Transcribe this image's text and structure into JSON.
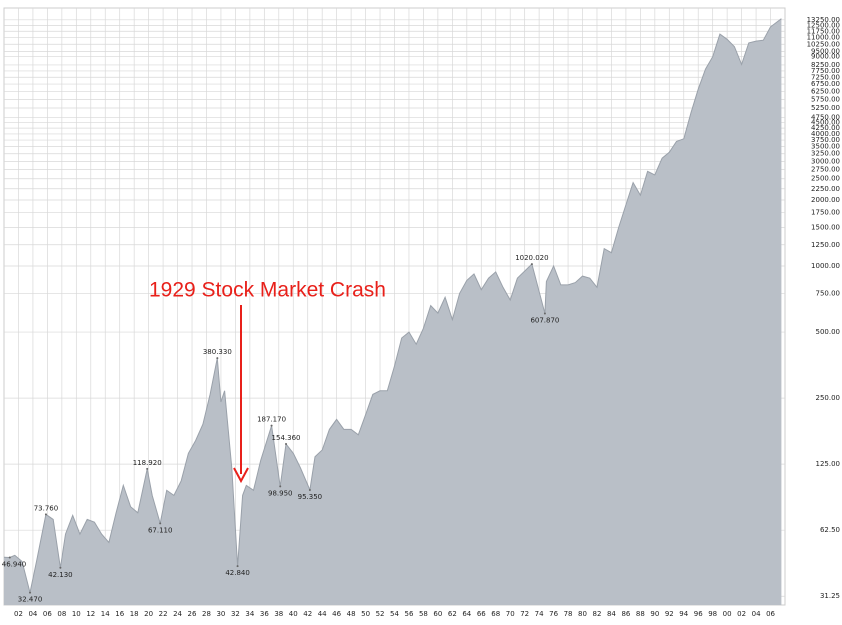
{
  "chart_data": {
    "type": "area",
    "annotation": "1929 Stock Market Crash",
    "color": "#b9bfc7",
    "line_color": "#9aa1aa",
    "log_scale": true,
    "grid": true,
    "xlim": [
      1900,
      2008
    ],
    "ylim": [
      28.5,
      15000
    ],
    "x": [
      1900,
      1900.8,
      1901.5,
      1902.5,
      1903.6,
      1904.5,
      1905.8,
      1906.8,
      1907.8,
      1908.5,
      1909.5,
      1910.5,
      1911.5,
      1912.5,
      1913.5,
      1914.5,
      1915.5,
      1916.5,
      1917.5,
      1918.5,
      1919.8,
      1920.5,
      1921.6,
      1922.5,
      1923.5,
      1924.5,
      1925.5,
      1926.5,
      1927.5,
      1928.5,
      1929.5,
      1930,
      1930.5,
      1931,
      1931.5,
      1932.3,
      1933,
      1933.5,
      1934.5,
      1935.5,
      1937,
      1938.2,
      1939,
      1940,
      1941,
      1942.3,
      1943,
      1944,
      1945,
      1946,
      1947,
      1948,
      1949,
      1950,
      1951,
      1952,
      1953,
      1954,
      1955,
      1956,
      1957,
      1958,
      1959,
      1960,
      1961,
      1962,
      1963,
      1964,
      1965,
      1966,
      1967,
      1968,
      1969,
      1970,
      1971,
      1973,
      1974.8,
      1975,
      1976,
      1977,
      1978,
      1979,
      1980,
      1981,
      1982,
      1983,
      1984,
      1985,
      1986,
      1987,
      1988,
      1989,
      1990,
      1991,
      1992,
      1993,
      1994,
      1995,
      1996,
      1997,
      1998,
      1999,
      2000,
      2001,
      2002,
      2003,
      2004,
      2005,
      2006,
      2007.5
    ],
    "values": [
      47,
      46.94,
      48,
      45,
      32.47,
      45,
      73.76,
      70,
      42.13,
      60,
      73,
      60,
      70,
      68,
      60,
      55,
      75,
      100,
      80,
      75,
      118.92,
      90,
      67.11,
      95,
      90,
      105,
      140,
      160,
      190,
      260,
      380.33,
      240,
      270,
      180,
      120,
      42.84,
      90,
      100,
      95,
      130,
      187.17,
      98.95,
      154.36,
      140,
      120,
      95.35,
      135,
      145,
      180,
      200,
      180,
      180,
      170,
      210,
      260,
      270,
      270,
      350,
      470,
      500,
      440,
      520,
      660,
      610,
      720,
      570,
      750,
      860,
      920,
      780,
      880,
      940,
      800,
      700,
      880,
      1020.02,
      607.87,
      850,
      1000,
      820,
      820,
      840,
      900,
      880,
      800,
      1200,
      1150,
      1500,
      1900,
      2400,
      2100,
      2700,
      2600,
      3100,
      3300,
      3700,
      3800,
      5000,
      6400,
      7900,
      9000,
      11400,
      10800,
      10000,
      8300,
      10400,
      10600,
      10700,
      12300,
      13400
    ],
    "point_labels": [
      {
        "x": 1900.8,
        "value": 46.94,
        "label": "46.940"
      },
      {
        "x": 1903.6,
        "value": 32.47,
        "label": "32.470"
      },
      {
        "x": 1905.8,
        "value": 73.76,
        "label": "73.760"
      },
      {
        "x": 1907.8,
        "value": 42.13,
        "label": "42.130"
      },
      {
        "x": 1919.8,
        "value": 118.92,
        "label": "118.920"
      },
      {
        "x": 1921.6,
        "value": 67.11,
        "label": "67.110"
      },
      {
        "x": 1929.5,
        "value": 380.33,
        "label": "380.330"
      },
      {
        "x": 1932.3,
        "value": 42.84,
        "label": "42.840"
      },
      {
        "x": 1937,
        "value": 187.17,
        "label": "187.170"
      },
      {
        "x": 1938.2,
        "value": 98.95,
        "label": "98.950"
      },
      {
        "x": 1939,
        "value": 154.36,
        "label": "154.360"
      },
      {
        "x": 1942.3,
        "value": 95.35,
        "label": "95.350"
      },
      {
        "x": 1973,
        "value": 1020.02,
        "label": "1020.020"
      },
      {
        "x": 1974.8,
        "value": 607.87,
        "label": "607.870"
      }
    ],
    "yticks": [
      31.25,
      {
        "value": 62.5,
        "label": "62.50"
      },
      {
        "value": 125,
        "label": "125.00"
      },
      {
        "value": 250,
        "label": "250.00"
      },
      {
        "value": 500,
        "label": "500.00"
      },
      {
        "value": 750,
        "label": "750.00"
      },
      {
        "value": 1000,
        "label": "1000.00"
      },
      {
        "value": 1250,
        "label": "1250.00"
      },
      {
        "value": 1500,
        "label": "1500.00"
      },
      {
        "value": 1750,
        "label": "1750.00"
      },
      {
        "value": 2000,
        "label": "2000.00"
      },
      {
        "value": 2250,
        "label": "2250.00"
      },
      {
        "value": 2500,
        "label": "2500.00"
      },
      {
        "value": 2750,
        "label": "2750.00"
      },
      {
        "value": 3000,
        "label": "3000.00"
      },
      {
        "value": 3250,
        "label": "3250.00"
      },
      {
        "value": 3500,
        "label": "3500.00"
      },
      {
        "value": 3750,
        "label": "3750.00"
      },
      {
        "value": 4000,
        "label": "4000.00"
      },
      {
        "value": 4250,
        "label": "4250.00"
      },
      {
        "value": 4500,
        "label": "4500.00"
      },
      {
        "value": 4750,
        "label": "4750.00"
      },
      {
        "value": 5250,
        "label": "5250.00"
      },
      {
        "value": 5750,
        "label": "5750.00"
      },
      {
        "value": 6250,
        "label": "6250.00"
      },
      {
        "value": 6750,
        "label": "6750.00"
      },
      {
        "value": 7250,
        "label": "7250.00"
      },
      {
        "value": 7750,
        "label": "7750.00"
      },
      {
        "value": 8250,
        "label": "8250.00"
      },
      {
        "value": 9000,
        "label": "9000.00"
      },
      {
        "value": 9500,
        "label": "9500.00"
      },
      {
        "value": 10250,
        "label": "10250.00"
      },
      {
        "value": 11000,
        "label": "11000.00"
      },
      {
        "value": 11750,
        "label": "11750.00"
      },
      {
        "value": 12500,
        "label": "12500.00"
      },
      {
        "value": 13250,
        "label": "13250.00"
      }
    ],
    "xticks": [
      {
        "value": 1902,
        "label": "02"
      },
      {
        "value": 1904,
        "label": "04"
      },
      {
        "value": 1906,
        "label": "06"
      },
      {
        "value": 1908,
        "label": "08"
      },
      {
        "value": 1910,
        "label": "10"
      },
      {
        "value": 1912,
        "label": "12"
      },
      {
        "value": 1914,
        "label": "14"
      },
      {
        "value": 1916,
        "label": "16"
      },
      {
        "value": 1918,
        "label": "18"
      },
      {
        "value": 1920,
        "label": "20"
      },
      {
        "value": 1922,
        "label": "22"
      },
      {
        "value": 1924,
        "label": "24"
      },
      {
        "value": 1926,
        "label": "26"
      },
      {
        "value": 1928,
        "label": "28"
      },
      {
        "value": 1930,
        "label": "30"
      },
      {
        "value": 1932,
        "label": "32"
      },
      {
        "value": 1934,
        "label": "34"
      },
      {
        "value": 1936,
        "label": "36"
      },
      {
        "value": 1938,
        "label": "38"
      },
      {
        "value": 1940,
        "label": "40"
      },
      {
        "value": 1942,
        "label": "42"
      },
      {
        "value": 1944,
        "label": "44"
      },
      {
        "value": 1946,
        "label": "46"
      },
      {
        "value": 1948,
        "label": "48"
      },
      {
        "value": 1950,
        "label": "50"
      },
      {
        "value": 1952,
        "label": "52"
      },
      {
        "value": 1954,
        "label": "54"
      },
      {
        "value": 1956,
        "label": "56"
      },
      {
        "value": 1958,
        "label": "58"
      },
      {
        "value": 1960,
        "label": "60"
      },
      {
        "value": 1962,
        "label": "62"
      },
      {
        "value": 1964,
        "label": "64"
      },
      {
        "value": 1966,
        "label": "66"
      },
      {
        "value": 1968,
        "label": "68"
      },
      {
        "value": 1970,
        "label": "70"
      },
      {
        "value": 1972,
        "label": "72"
      },
      {
        "value": 1974,
        "label": "74"
      },
      {
        "value": 1976,
        "label": "76"
      },
      {
        "value": 1978,
        "label": "78"
      },
      {
        "value": 1980,
        "label": "80"
      },
      {
        "value": 1982,
        "label": "82"
      },
      {
        "value": 1984,
        "label": "84"
      },
      {
        "value": 1986,
        "label": "86"
      },
      {
        "value": 1988,
        "label": "88"
      },
      {
        "value": 1990,
        "label": "90"
      },
      {
        "value": 1992,
        "label": "92"
      },
      {
        "value": 1994,
        "label": "94"
      },
      {
        "value": 1996,
        "label": "96"
      },
      {
        "value": 1998,
        "label": "98"
      },
      {
        "value": 2000,
        "label": "00"
      },
      {
        "value": 2002,
        "label": "02"
      },
      {
        "value": 2004,
        "label": "04"
      },
      {
        "value": 2006,
        "label": "06"
      }
    ]
  }
}
